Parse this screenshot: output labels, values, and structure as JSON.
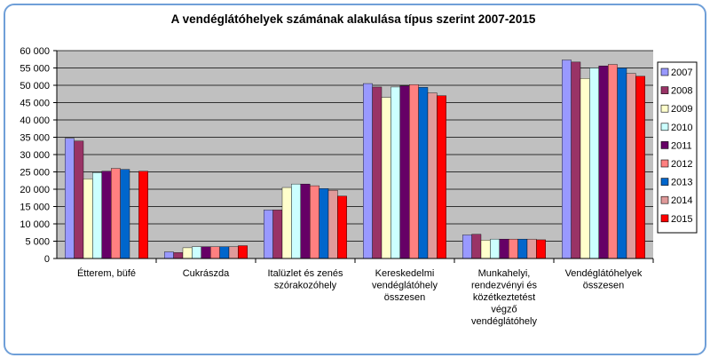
{
  "chart_data": {
    "type": "bar",
    "title": "A vendéglátóhelyek számának alakulása típus szerint 2007-2015",
    "xlabel": "",
    "ylabel": "",
    "ylim": [
      0,
      60000
    ],
    "yticks": [
      0,
      5000,
      10000,
      15000,
      20000,
      25000,
      30000,
      35000,
      40000,
      45000,
      50000,
      55000,
      60000
    ],
    "ytick_labels": [
      "0",
      "5 000",
      "10 000",
      "15 000",
      "20 000",
      "25 000",
      "30 000",
      "35 000",
      "40 000",
      "45 000",
      "50 000",
      "55 000",
      "60 000"
    ],
    "grid": true,
    "legend_position": "right",
    "categories": [
      [
        "Étterem, büfé"
      ],
      [
        "Cukrászda"
      ],
      [
        "Italüzlet  és zenés",
        "szórakozóhely"
      ],
      [
        "Kereskedelmi",
        "vendéglátóhely",
        "összesen"
      ],
      [
        "Munkahelyi,",
        "rendezvényi  és",
        "közétkeztetést",
        "végző",
        "vendéglátóhely"
      ],
      [
        "Vendéglátóhelyek",
        "összesen"
      ]
    ],
    "series": [
      {
        "name": "2007",
        "color": "#9999ff",
        "values": [
          34700,
          1900,
          14000,
          50500,
          6800,
          57300
        ]
      },
      {
        "name": "2008",
        "color": "#993366",
        "values": [
          33900,
          1700,
          14000,
          49500,
          7000,
          56700
        ]
      },
      {
        "name": "2009",
        "color": "#ffffcc",
        "values": [
          23000,
          3100,
          20500,
          46500,
          5300,
          52000
        ]
      },
      {
        "name": "2010",
        "color": "#ccffff",
        "values": [
          24800,
          3400,
          21500,
          49500,
          5600,
          55000
        ]
      },
      {
        "name": "2011",
        "color": "#660066",
        "values": [
          25200,
          3400,
          21500,
          49800,
          5600,
          55600
        ]
      },
      {
        "name": "2012",
        "color": "#ff8080",
        "values": [
          26000,
          3400,
          21000,
          50200,
          5600,
          56000
        ]
      },
      {
        "name": "2013",
        "color": "#0066cc",
        "values": [
          25700,
          3400,
          20200,
          49400,
          5600,
          55000
        ]
      },
      {
        "name": "2014",
        "color": "#e09a9a",
        "values": [
          0,
          3400,
          19700,
          47800,
          5600,
          53400
        ]
      },
      {
        "name": "2015",
        "color": "#ff0000",
        "values": [
          25200,
          3700,
          18000,
          47000,
          5400,
          52600
        ]
      }
    ]
  }
}
